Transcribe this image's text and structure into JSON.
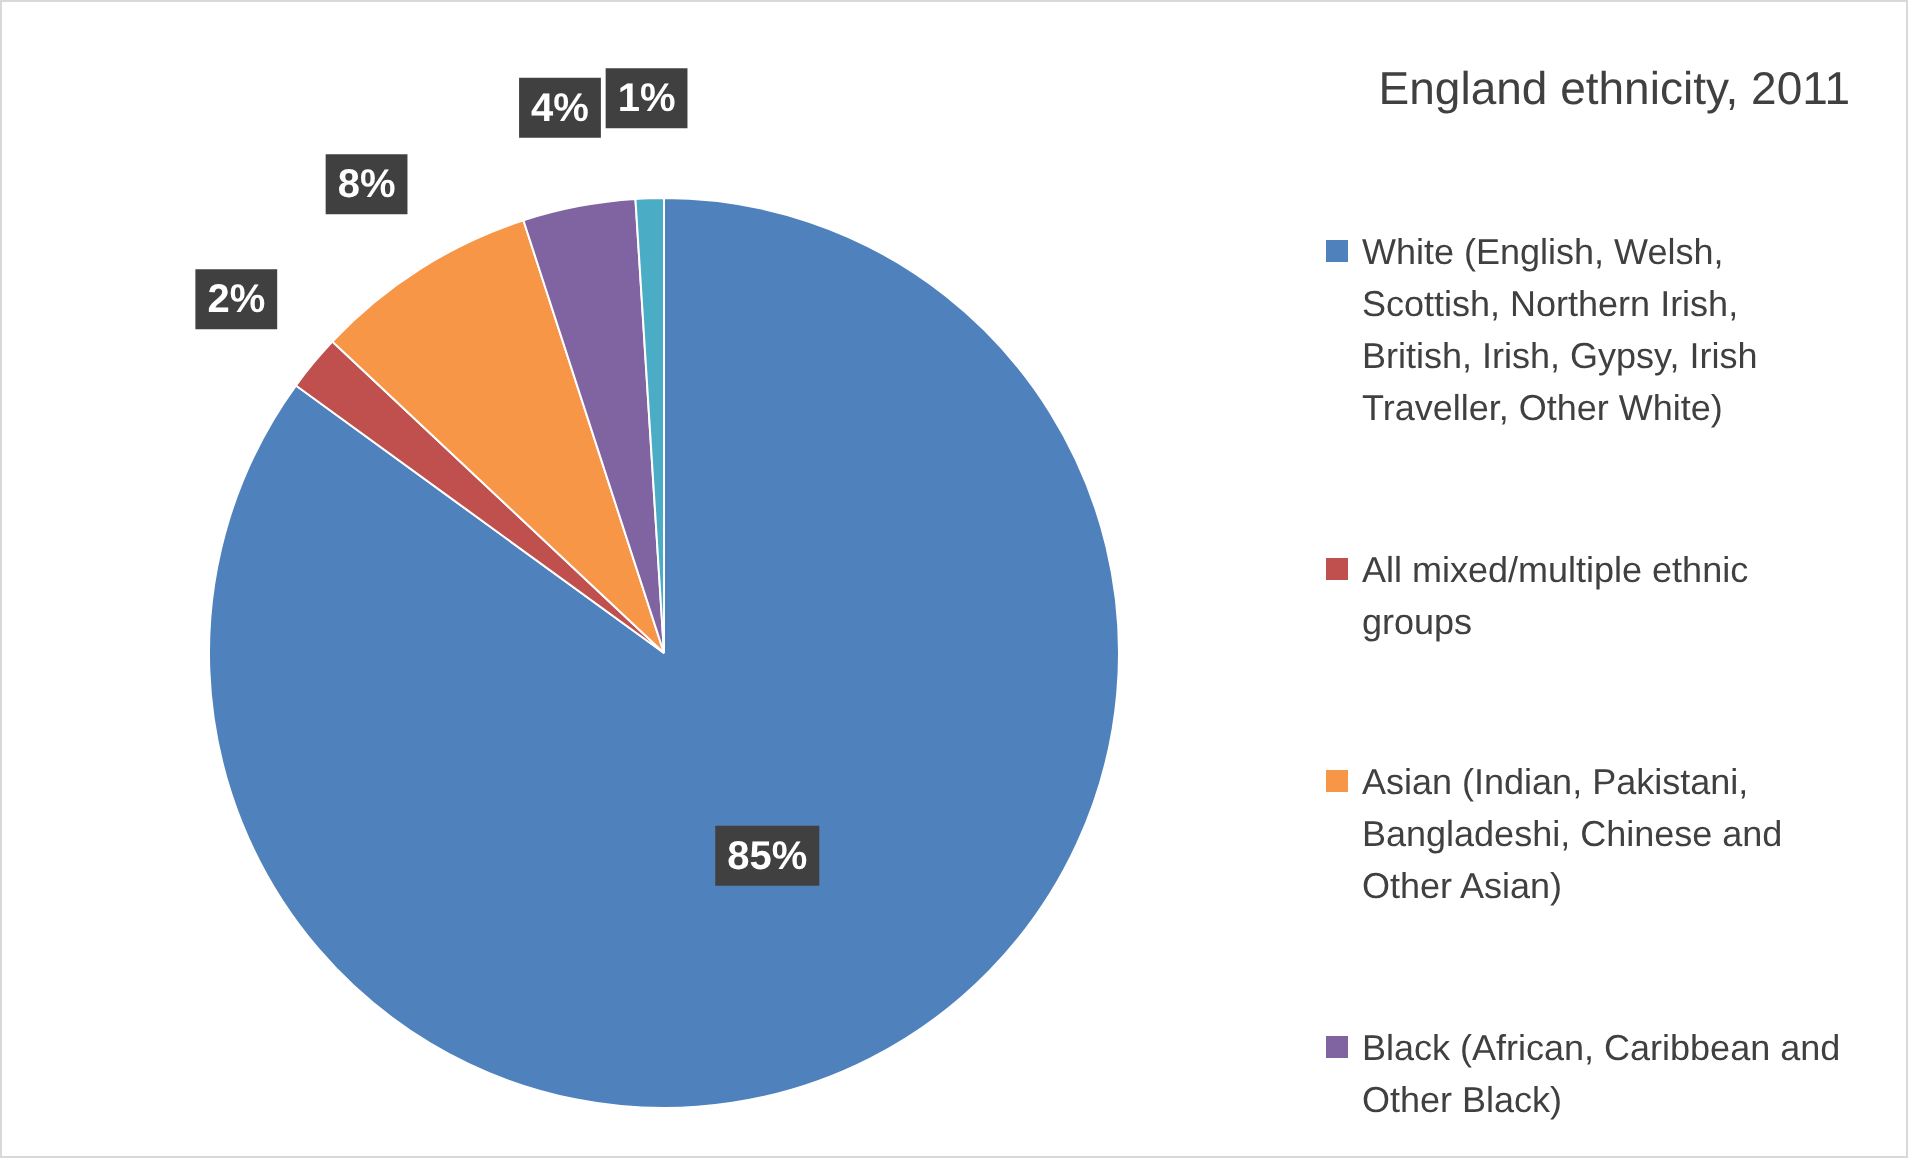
{
  "chart_data": {
    "type": "pie",
    "title": "England ethnicity, 2011",
    "categories": [
      "White (English, Welsh, Scottish, Northern Irish, British, Irish, Gypsy, Irish Traveller, Other White)",
      "All mixed/multiple ethnic groups",
      "Asian (Indian, Pakistani, Bangladeshi, Chinese and Other Asian)",
      "Black  (African, Caribbean and Other Black)",
      null
    ],
    "values": [
      85,
      2,
      8,
      4,
      1
    ],
    "colors": [
      "#4f81bd",
      "#c0504d",
      "#f79646",
      "#8064a2",
      "#4bacc6"
    ],
    "value_labels": [
      "85%",
      "2%",
      "8%",
      "4%",
      "1%"
    ],
    "legend": "right"
  }
}
